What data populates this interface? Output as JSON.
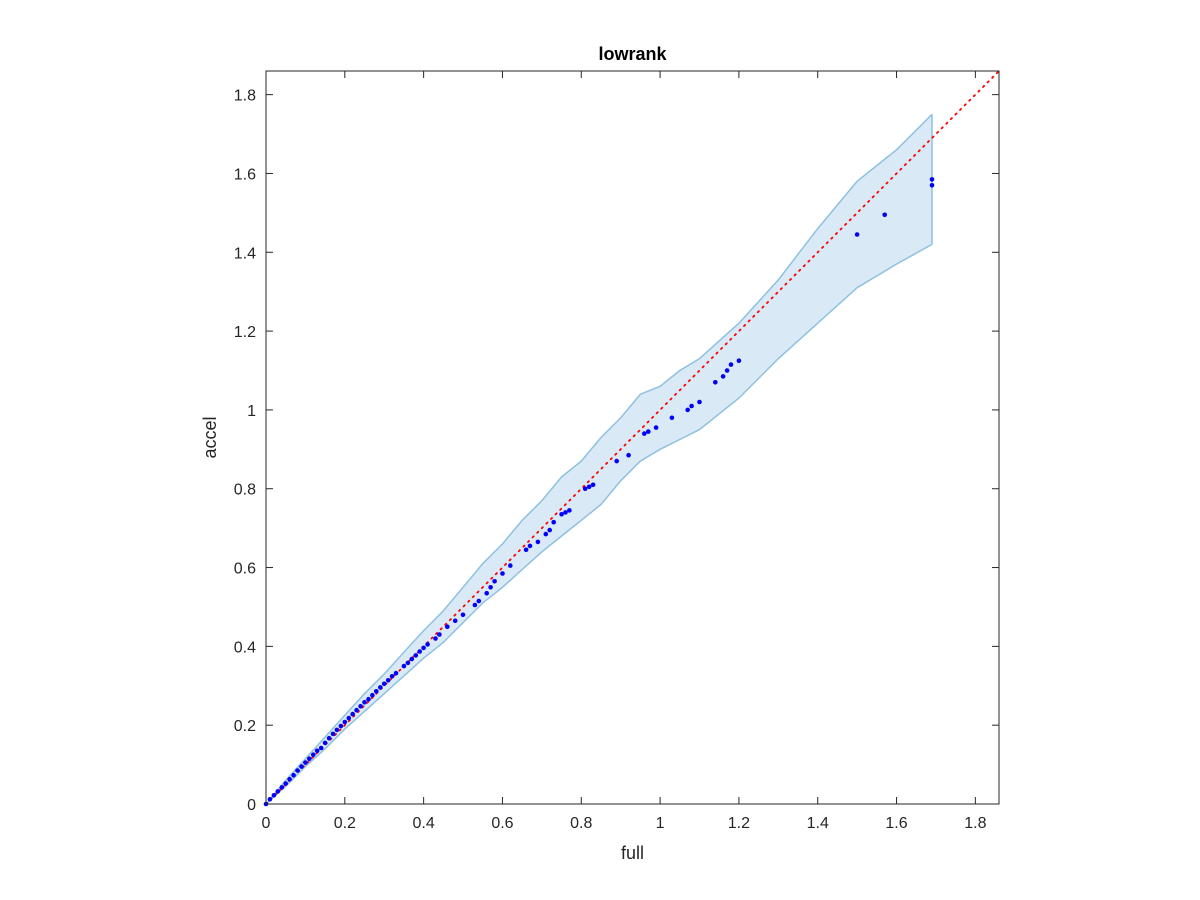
{
  "chart_data": {
    "type": "scatter",
    "title": "lowrank",
    "xlabel": "full",
    "ylabel": "accel",
    "xlim": [
      0,
      1.86
    ],
    "ylim": [
      0,
      1.86
    ],
    "xticks": [
      "0",
      "0.2",
      "0.4",
      "0.6",
      "0.8",
      "1",
      "1.2",
      "1.4",
      "1.6",
      "1.8"
    ],
    "yticks": [
      "0",
      "0.2",
      "0.4",
      "0.6",
      "0.8",
      "1",
      "1.2",
      "1.4",
      "1.6",
      "1.8"
    ],
    "grid": false,
    "colors": {
      "points": "#0000ff",
      "reference_line": "#ff0000",
      "band_fill": "#d9e9f5",
      "band_edge": "#8ec0e0",
      "axes": "#262626"
    },
    "reference_line": {
      "style": "dotted",
      "x": [
        0,
        1.86
      ],
      "y": [
        0,
        1.86
      ]
    },
    "band": {
      "x": [
        0,
        0.05,
        0.1,
        0.15,
        0.2,
        0.25,
        0.3,
        0.35,
        0.4,
        0.45,
        0.5,
        0.55,
        0.6,
        0.65,
        0.7,
        0.75,
        0.8,
        0.85,
        0.9,
        0.95,
        1.0,
        1.05,
        1.1,
        1.2,
        1.3,
        1.4,
        1.5,
        1.6,
        1.69
      ],
      "upper": [
        0,
        0.06,
        0.115,
        0.17,
        0.225,
        0.28,
        0.33,
        0.385,
        0.44,
        0.49,
        0.55,
        0.61,
        0.66,
        0.72,
        0.77,
        0.83,
        0.87,
        0.93,
        0.98,
        1.04,
        1.06,
        1.1,
        1.13,
        1.22,
        1.33,
        1.46,
        1.58,
        1.66,
        1.75
      ],
      "lower": [
        0,
        0.045,
        0.095,
        0.14,
        0.19,
        0.235,
        0.28,
        0.325,
        0.37,
        0.41,
        0.46,
        0.51,
        0.55,
        0.595,
        0.64,
        0.68,
        0.72,
        0.76,
        0.82,
        0.87,
        0.9,
        0.925,
        0.95,
        1.03,
        1.13,
        1.22,
        1.31,
        1.37,
        1.42
      ]
    },
    "series": [
      {
        "x": [
          0.0,
          0.01,
          0.02,
          0.03,
          0.04,
          0.05,
          0.06,
          0.07,
          0.08,
          0.09,
          0.1,
          0.11,
          0.12,
          0.13,
          0.14,
          0.15,
          0.16,
          0.17,
          0.18,
          0.19,
          0.2,
          0.21,
          0.22,
          0.23,
          0.24,
          0.25,
          0.26,
          0.27,
          0.28,
          0.29,
          0.3,
          0.31,
          0.32,
          0.33,
          0.35,
          0.36,
          0.37,
          0.38,
          0.39,
          0.4,
          0.41,
          0.43,
          0.44,
          0.46,
          0.48,
          0.5,
          0.53,
          0.54,
          0.56,
          0.57,
          0.58,
          0.6,
          0.62,
          0.66,
          0.67,
          0.69,
          0.71,
          0.72,
          0.73,
          0.75,
          0.76,
          0.77,
          0.81,
          0.82,
          0.83,
          0.89,
          0.92,
          0.96,
          0.97,
          0.99,
          1.03,
          1.07,
          1.08,
          1.1,
          1.14,
          1.16,
          1.17,
          1.18,
          1.2,
          1.5,
          1.57,
          1.69,
          1.69
        ],
        "y": [
          0.0,
          0.012,
          0.022,
          0.032,
          0.042,
          0.052,
          0.063,
          0.073,
          0.085,
          0.095,
          0.105,
          0.115,
          0.125,
          0.135,
          0.142,
          0.155,
          0.167,
          0.178,
          0.188,
          0.198,
          0.208,
          0.218,
          0.228,
          0.238,
          0.248,
          0.258,
          0.266,
          0.276,
          0.286,
          0.296,
          0.305,
          0.314,
          0.324,
          0.332,
          0.35,
          0.358,
          0.368,
          0.377,
          0.387,
          0.396,
          0.405,
          0.42,
          0.43,
          0.45,
          0.465,
          0.48,
          0.505,
          0.515,
          0.535,
          0.55,
          0.565,
          0.585,
          0.605,
          0.645,
          0.655,
          0.665,
          0.685,
          0.695,
          0.715,
          0.735,
          0.74,
          0.745,
          0.8,
          0.805,
          0.81,
          0.87,
          0.885,
          0.94,
          0.945,
          0.955,
          0.98,
          1.0,
          1.01,
          1.02,
          1.07,
          1.085,
          1.1,
          1.115,
          1.125,
          1.445,
          1.495,
          1.57,
          1.585
        ]
      }
    ]
  }
}
